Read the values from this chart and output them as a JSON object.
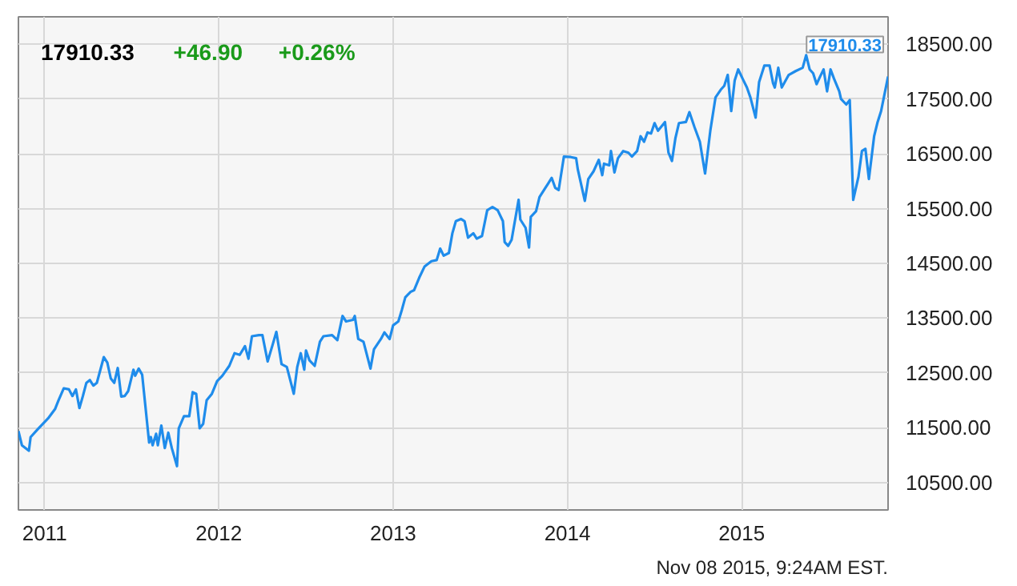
{
  "chart_data": {
    "type": "line",
    "x": [
      2010.85,
      2010.87,
      2010.91,
      2010.92,
      2010.96,
      2011.02,
      2011.06,
      2011.08,
      2011.11,
      2011.14,
      2011.16,
      2011.18,
      2011.2,
      2011.22,
      2011.24,
      2011.26,
      2011.28,
      2011.3,
      2011.34,
      2011.36,
      2011.38,
      2011.4,
      2011.42,
      2011.44,
      2011.46,
      2011.48,
      2011.51,
      2011.52,
      2011.54,
      2011.56,
      2011.6,
      2011.61,
      2011.62,
      2011.64,
      2011.65,
      2011.67,
      2011.69,
      2011.71,
      2011.73,
      2011.76,
      2011.77,
      2011.8,
      2011.83,
      2011.85,
      2011.87,
      2011.89,
      2011.91,
      2011.93,
      2011.96,
      2011.99,
      2012.02,
      2012.06,
      2012.09,
      2012.12,
      2012.15,
      2012.17,
      2012.19,
      2012.23,
      2012.25,
      2012.28,
      2012.31,
      2012.33,
      2012.36,
      2012.39,
      2012.4,
      2012.43,
      2012.45,
      2012.47,
      2012.49,
      2012.5,
      2012.52,
      2012.55,
      2012.58,
      2012.6,
      2012.65,
      2012.68,
      2012.71,
      2012.73,
      2012.77,
      2012.78,
      2012.8,
      2012.83,
      2012.87,
      2012.89,
      2012.93,
      2012.95,
      2012.98,
      2013.0,
      2013.03,
      2013.05,
      2013.07,
      2013.1,
      2013.12,
      2013.15,
      2013.18,
      2013.22,
      2013.25,
      2013.27,
      2013.29,
      2013.32,
      2013.34,
      2013.36,
      2013.39,
      2013.41,
      2013.43,
      2013.46,
      2013.48,
      2013.51,
      2013.54,
      2013.57,
      2013.6,
      2013.63,
      2013.64,
      2013.66,
      2013.68,
      2013.72,
      2013.73,
      2013.76,
      2013.78,
      2013.79,
      2013.82,
      2013.84,
      2013.87,
      2013.89,
      2013.91,
      2013.93,
      2013.95,
      2013.98,
      2014.02,
      2014.05,
      2014.06,
      2014.1,
      2014.12,
      2014.15,
      2014.18,
      2014.2,
      2014.21,
      2014.24,
      2014.25,
      2014.27,
      2014.29,
      2014.32,
      2014.35,
      2014.37,
      2014.4,
      2014.42,
      2014.44,
      2014.46,
      2014.48,
      2014.5,
      2014.52,
      2014.56,
      2014.58,
      2014.6,
      2014.62,
      2014.64,
      2014.68,
      2014.7,
      2014.73,
      2014.76,
      2014.79,
      2014.82,
      2014.85,
      2014.88,
      2014.9,
      2014.92,
      2014.94,
      2014.96,
      2014.98,
      2015.01,
      2015.03,
      2015.05,
      2015.08,
      2015.1,
      2015.13,
      2015.16,
      2015.18,
      2015.19,
      2015.21,
      2015.23,
      2015.27,
      2015.31,
      2015.35,
      2015.37,
      2015.39,
      2015.41,
      2015.43,
      2015.45,
      2015.47,
      2015.49,
      2015.51,
      2015.53,
      2015.56,
      2015.57,
      2015.6,
      2015.62,
      2015.64,
      2015.67,
      2015.69,
      2015.71,
      2015.73,
      2015.76,
      2015.78,
      2015.8,
      2015.84
    ],
    "series": [
      {
        "color": "#1f8ceb",
        "values": [
          11440,
          11180,
          11080,
          11330,
          11470,
          11670,
          11840,
          12000,
          12220,
          12200,
          12080,
          12200,
          11860,
          12080,
          12320,
          12370,
          12270,
          12320,
          12790,
          12690,
          12400,
          12320,
          12590,
          12070,
          12080,
          12170,
          12560,
          12450,
          12580,
          12470,
          11230,
          11330,
          11180,
          11390,
          11180,
          11540,
          11130,
          11410,
          11130,
          10800,
          11490,
          11710,
          11710,
          12150,
          12120,
          11490,
          11570,
          12000,
          12120,
          12350,
          12450,
          12630,
          12860,
          12830,
          12990,
          12760,
          13170,
          13190,
          13190,
          12710,
          13030,
          13250,
          12660,
          12610,
          12490,
          12120,
          12610,
          12860,
          12560,
          12910,
          12730,
          12630,
          13070,
          13170,
          13190,
          13100,
          13540,
          13440,
          13470,
          13540,
          13120,
          13070,
          12580,
          12930,
          13120,
          13240,
          13120,
          13370,
          13440,
          13650,
          13880,
          13980,
          14010,
          14240,
          14440,
          14540,
          14560,
          14770,
          14640,
          14690,
          15050,
          15270,
          15310,
          15270,
          14970,
          15050,
          14950,
          15000,
          15470,
          15530,
          15470,
          15270,
          14890,
          14820,
          14930,
          15660,
          15300,
          15150,
          14790,
          15350,
          15450,
          15710,
          15860,
          15960,
          16060,
          15880,
          15840,
          16450,
          16440,
          16420,
          16210,
          15640,
          16040,
          16180,
          16390,
          16110,
          16320,
          16290,
          16550,
          16160,
          16420,
          16550,
          16520,
          16450,
          16550,
          16820,
          16720,
          16890,
          16870,
          17060,
          16920,
          17080,
          16520,
          16370,
          16790,
          17060,
          17080,
          17260,
          16980,
          16720,
          16140,
          16920,
          17530,
          17670,
          17740,
          17940,
          17280,
          17840,
          18040,
          17840,
          17710,
          17530,
          17160,
          17810,
          18110,
          18110,
          17790,
          17710,
          18070,
          17710,
          17940,
          18010,
          18070,
          18300,
          18040,
          17970,
          17770,
          17910,
          18040,
          17640,
          18040,
          17870,
          17640,
          17500,
          17400,
          17480,
          15660,
          16080,
          16550,
          16590,
          16040,
          16820,
          17080,
          17280,
          17910.33
        ]
      }
    ],
    "xlim": [
      2010.85,
      2015.84
    ],
    "xticks": [
      2011,
      2012,
      2013,
      2014,
      2015
    ],
    "ylim": [
      10000,
      19000
    ],
    "yticks": [
      {
        "value": 10500,
        "label": "10500.00"
      },
      {
        "value": 11500,
        "label": "11500.00"
      },
      {
        "value": 12500,
        "label": "12500.00"
      },
      {
        "value": 13500,
        "label": "13500.00"
      },
      {
        "value": 14500,
        "label": "14500.00"
      },
      {
        "value": 15500,
        "label": "15500.00"
      },
      {
        "value": 16500,
        "label": "16500.00"
      },
      {
        "value": 17500,
        "label": "17500.00"
      },
      {
        "value": 18500,
        "label": "18500.00"
      }
    ],
    "annotations": [
      "17910.33",
      "+46.90",
      "+0.26%",
      "Nov 08 2015, 9:24AM EST.",
      {
        "text": "17910.33",
        "x": 2015.84,
        "y": 17910.33
      }
    ],
    "grid": true
  }
}
